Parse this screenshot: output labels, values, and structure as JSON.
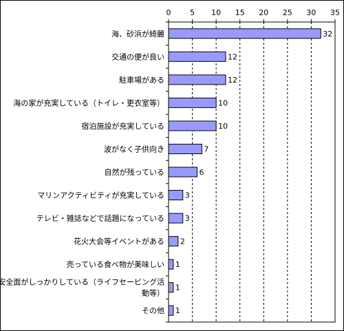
{
  "chart_data": {
    "type": "bar",
    "orientation": "horizontal",
    "categories": [
      [
        "海、砂浜が綺麗"
      ],
      [
        "交通の便が良い"
      ],
      [
        "駐車場がある"
      ],
      [
        "海の家が充実している（トイレ・更衣室等）"
      ],
      [
        "宿泊施設が充実している"
      ],
      [
        "波がなく子供向き"
      ],
      [
        "自然が残っている"
      ],
      [
        "マリンアクティビティが充実している"
      ],
      [
        "テレビ・雑誌などで話題になっている"
      ],
      [
        "花火大会等イベントがある"
      ],
      [
        "売っている食べ物が美味しい"
      ],
      [
        "安全面がしっかりしている（ライフセービング活",
        "動等）"
      ],
      [
        "その他"
      ]
    ],
    "values": [
      32,
      12,
      12,
      10,
      10,
      7,
      6,
      3,
      3,
      2,
      1,
      1,
      1
    ],
    "xlim": [
      0,
      35
    ],
    "xticks": [
      0,
      5,
      10,
      15,
      20,
      25,
      30,
      35
    ],
    "x_axis_position": "top",
    "grid": "vertical dashed",
    "bar_color": "#9999ff",
    "bar_edge_color": "#000000",
    "legend": "none"
  }
}
